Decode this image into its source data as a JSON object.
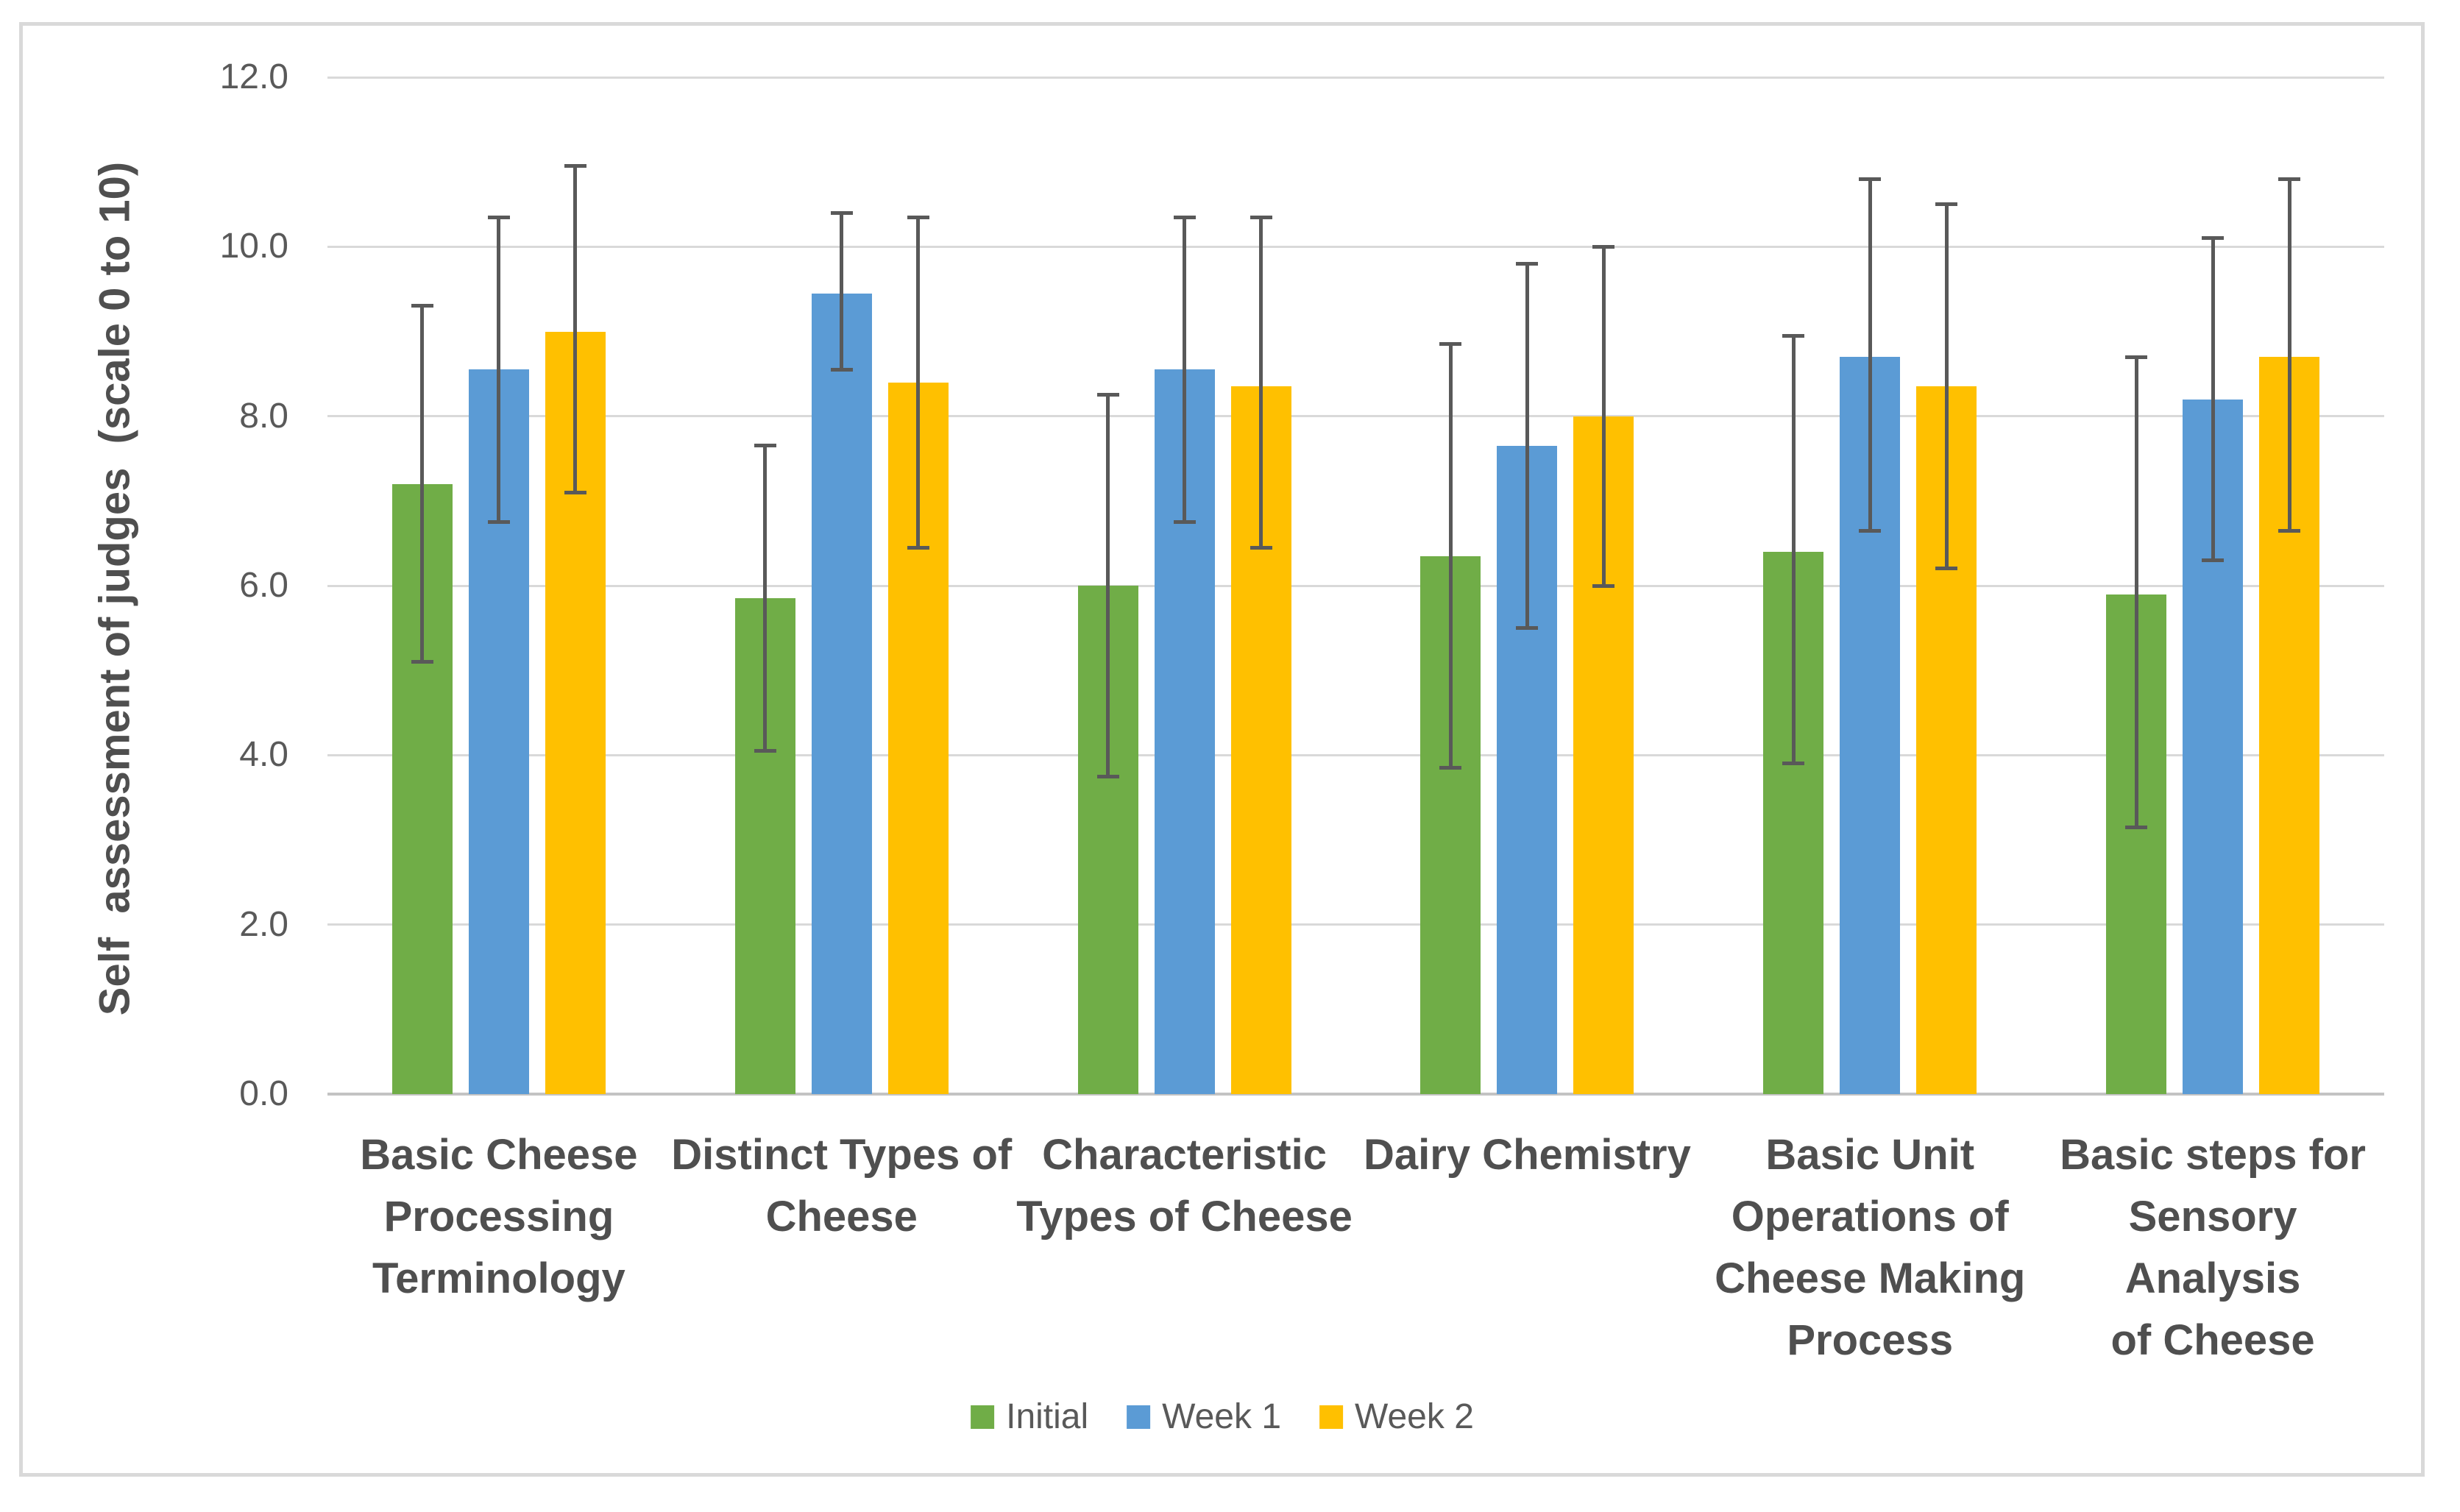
{
  "chart_data": {
    "type": "bar",
    "ylabel": "Self  assessment of judges  (scale 0 to 10)",
    "ylim": [
      0,
      12
    ],
    "yticks": [
      0,
      2,
      4,
      6,
      8,
      10,
      12
    ],
    "ytick_labels": [
      "0.0",
      "2.0",
      "4.0",
      "6.0",
      "8.0",
      "10.0",
      "12.0"
    ],
    "grid": true,
    "legend_position": "bottom-center",
    "error_bars": true,
    "categories": [
      "Basic Cheese\nProcessing\nTerminology",
      "Distinct Types of\nCheese",
      "Characteristic\nTypes of Cheese",
      "Dairy Chemistry",
      "Basic Unit\nOperations of\nCheese Making\nProcess",
      "Basic steps for\nSensory Analysis\nof Cheese"
    ],
    "series": [
      {
        "name": "Initial",
        "color": "#70AD47",
        "values": [
          7.2,
          5.85,
          6.0,
          6.35,
          6.4,
          5.9
        ],
        "error_low": [
          5.1,
          4.05,
          3.75,
          3.85,
          3.9,
          3.15
        ],
        "error_high": [
          9.3,
          7.65,
          8.25,
          8.85,
          8.95,
          8.7
        ]
      },
      {
        "name": "Week 1",
        "color": "#5B9BD5",
        "values": [
          8.55,
          9.45,
          8.55,
          7.65,
          8.7,
          8.2
        ],
        "error_low": [
          6.75,
          8.55,
          6.75,
          5.5,
          6.65,
          6.3
        ],
        "error_high": [
          10.35,
          10.4,
          10.35,
          9.8,
          10.8,
          10.1
        ]
      },
      {
        "name": "Week 2",
        "color": "#FFC000",
        "values": [
          9.0,
          8.4,
          8.35,
          8.0,
          8.35,
          8.7
        ],
        "error_low": [
          7.1,
          6.45,
          6.45,
          6.0,
          6.2,
          6.65
        ],
        "error_high": [
          10.95,
          10.35,
          10.35,
          10.0,
          10.5,
          10.8
        ]
      }
    ]
  },
  "style": {
    "background": "#FFFFFF",
    "frame_border_color": "#D9D9D9",
    "gridline_color": "#D9D9D9",
    "axis_line_color": "#C3C3C3",
    "error_bar_color": "#595959",
    "tick_text_color": "#595959",
    "label_text_color": "#4F4F4F",
    "legend_text_color": "#595959"
  }
}
